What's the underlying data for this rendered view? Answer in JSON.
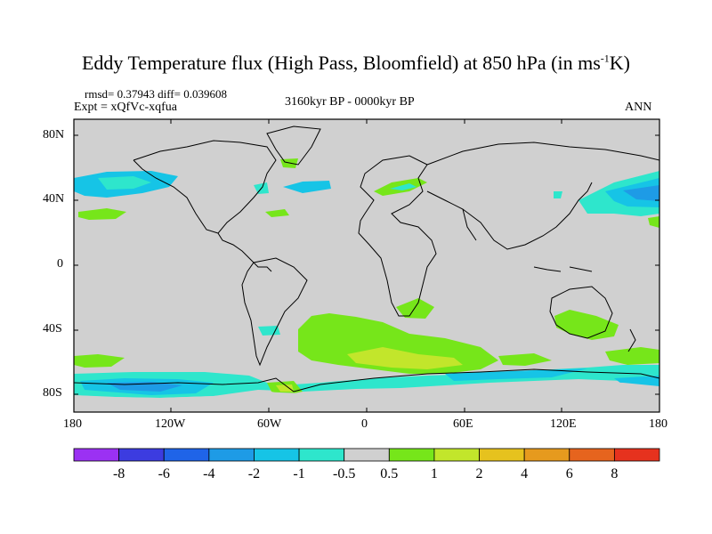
{
  "title": {
    "main": "Eddy Temperature flux (High Pass, Bloomfield) at 850 hPa (in ms",
    "sup": "-1",
    "tail": "K)"
  },
  "stats": "rmsd= 0.37943 diff= 0.039608",
  "expt": "Expt = xQfVc-xqfua",
  "period": "3160kyr BP - 0000kyr BP",
  "season": "ANN",
  "lat_ticks": [
    "80N",
    "40N",
    "0",
    "40S",
    "80S"
  ],
  "lon_ticks": [
    "180",
    "120W",
    "60W",
    "0",
    "60E",
    "120E",
    "180"
  ],
  "colorbar": {
    "colors": [
      "#9b31f3",
      "#3c3ce0",
      "#1f64e8",
      "#1e9be6",
      "#16c4e6",
      "#2ee6cc",
      "#d0d0d0",
      "#76e61a",
      "#c2e62b",
      "#e6c21e",
      "#e69a1e",
      "#e6641e",
      "#e6321e"
    ],
    "labels": [
      "-8",
      "-6",
      "-4",
      "-2",
      "-1",
      "-0.5",
      "0.5",
      "1",
      "2",
      "4",
      "6",
      "8"
    ]
  },
  "colors": {
    "land_ocean_default": "#d0d0d0",
    "coast": "#000000"
  }
}
